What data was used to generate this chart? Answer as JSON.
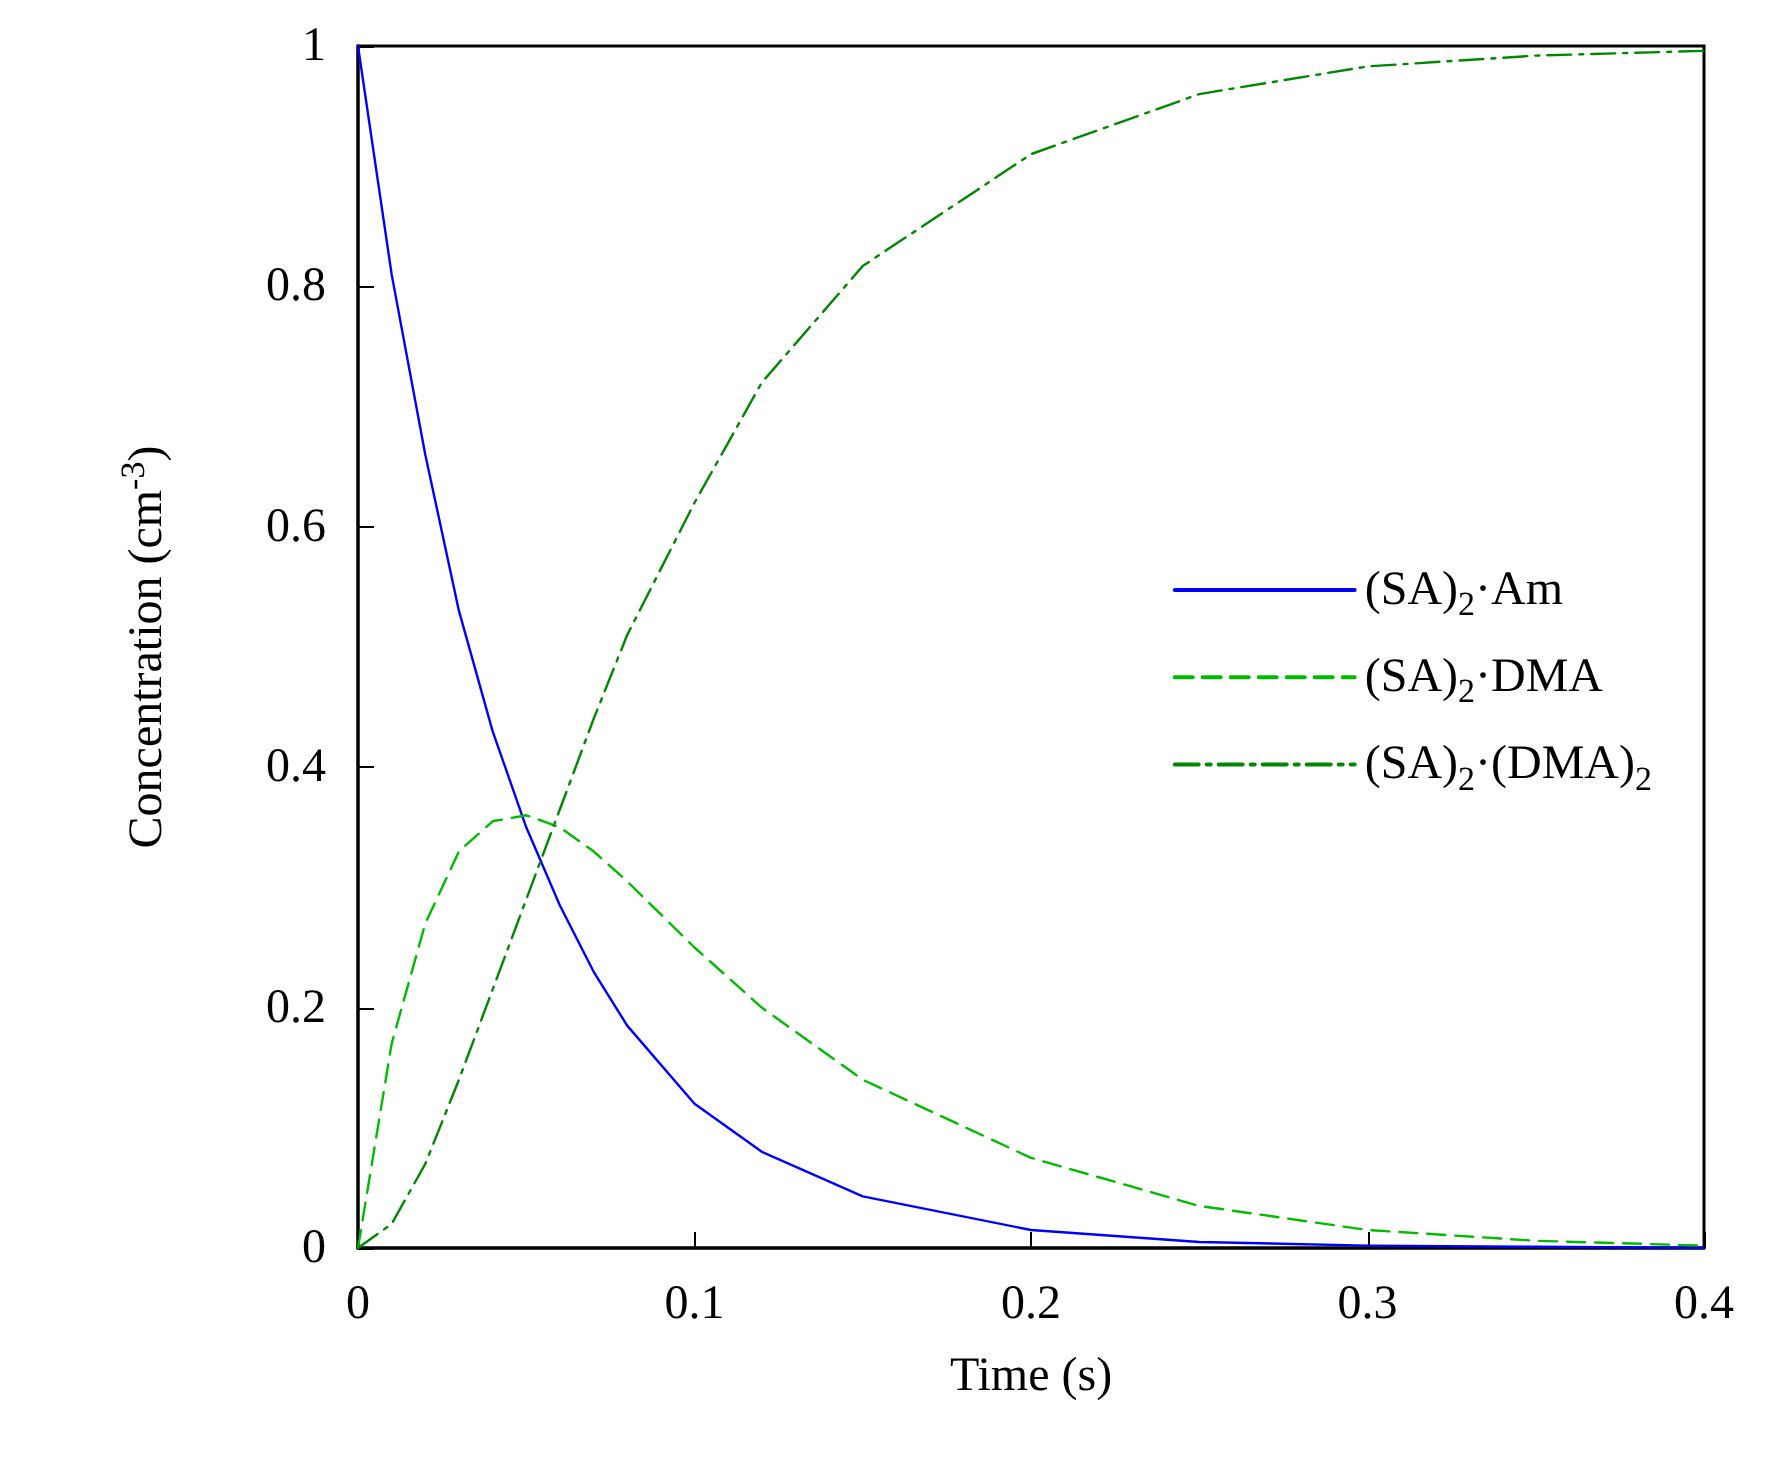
{
  "chart_data": {
    "type": "line",
    "xlabel": "Time (s)",
    "ylabel": "Concentration (cm$^{-3}$)",
    "x": [
      0,
      0.01,
      0.02,
      0.03,
      0.04,
      0.05,
      0.06,
      0.07,
      0.08,
      0.1,
      0.12,
      0.15,
      0.2,
      0.25,
      0.3,
      0.35,
      0.4
    ],
    "series": [
      {
        "name": "(SA)$_{2}$·Am",
        "color": "#0000ff",
        "line_style": "solid",
        "values": [
          1,
          0.81,
          0.66,
          0.53,
          0.43,
          0.35,
          0.285,
          0.23,
          0.185,
          0.12,
          0.08,
          0.043,
          0.015,
          0.005,
          0.002,
          0.001,
          0
        ]
      },
      {
        "name": "(SA)$_{2}$·DMA",
        "color": "#00bb00",
        "line_style": "dashed",
        "values": [
          0,
          0.17,
          0.27,
          0.33,
          0.355,
          0.36,
          0.35,
          0.33,
          0.305,
          0.25,
          0.2,
          0.14,
          0.075,
          0.035,
          0.015,
          0.006,
          0.002
        ]
      },
      {
        "name": "(SA)$_{2}$·(DMA)$_{2}$",
        "color": "#008800",
        "line_style": "dashdot",
        "values": [
          0,
          0.02,
          0.07,
          0.14,
          0.215,
          0.29,
          0.365,
          0.44,
          0.51,
          0.62,
          0.72,
          0.817,
          0.91,
          0.96,
          0.983,
          0.992,
          0.996
        ]
      }
    ],
    "xlim": [
      0,
      0.4
    ],
    "xticks": [
      0,
      0.1,
      0.2,
      0.3,
      0.4
    ],
    "ylim": [
      0,
      1
    ],
    "yticks": [
      0,
      0.2,
      0.4,
      0.6,
      0.8,
      1
    ],
    "grid": false,
    "legend": "right",
    "marker": "none"
  }
}
